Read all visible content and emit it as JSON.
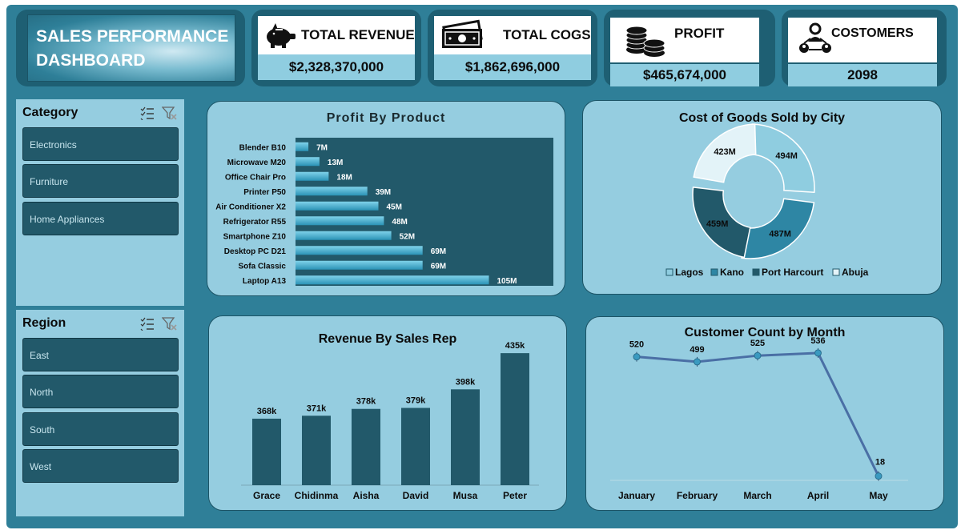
{
  "dashboard_title": "SALES PERFORMANCE DASHBOARD",
  "kpis": {
    "revenue": {
      "label": "TOTAL REVENUE",
      "value": "$2,328,370,000",
      "icon": "piggy-bank-icon"
    },
    "cogs": {
      "label": "TOTAL COGS",
      "value": "$1,862,696,000",
      "icon": "cash-icon"
    },
    "profit": {
      "label": "PROFIT",
      "value": "$465,674,000",
      "icon": "coins-icon"
    },
    "customers": {
      "label": "COSTOMERS",
      "value": "2098",
      "icon": "people-network-icon"
    }
  },
  "slicers": {
    "category": {
      "title": "Category",
      "items": [
        "Electronics",
        "Furniture",
        "Home Appliances"
      ]
    },
    "region": {
      "title": "Region",
      "items": [
        "East",
        "North",
        "South",
        "West"
      ]
    }
  },
  "colors": {
    "dark": "#22596a",
    "bar": "#3aa8c9",
    "panel": "#95cde0",
    "line": "#4a6fa5",
    "marker": "#3a9ac0"
  },
  "chart_data": [
    {
      "id": "profit_by_product",
      "type": "bar",
      "orientation": "horizontal",
      "title": "Profit By Product",
      "categories": [
        "Blender B10",
        "Microwave M20",
        "Office Chair Pro",
        "Printer P50",
        "Air Conditioner X2",
        "Refrigerator R55",
        "Smartphone Z10",
        "Desktop PC D21",
        "Sofa Classic",
        "Laptop A13"
      ],
      "values": [
        7,
        13,
        18,
        39,
        45,
        48,
        52,
        69,
        69,
        105
      ],
      "labels": [
        "7M",
        "13M",
        "18M",
        "39M",
        "45M",
        "48M",
        "52M",
        "69M",
        "69M",
        "105M"
      ],
      "xlim": [
        0,
        140
      ],
      "unit": "M"
    },
    {
      "id": "cogs_by_city",
      "type": "pie",
      "title": "Cost of Goods Sold by City",
      "categories": [
        "Lagos",
        "Kano",
        "Port Harcourt",
        "Abuja"
      ],
      "values": [
        494,
        487,
        459,
        423
      ],
      "labels": [
        "494M",
        "487M",
        "459M",
        "423M"
      ],
      "legend": "bottom"
    },
    {
      "id": "revenue_by_rep",
      "type": "bar",
      "title": "Revenue By Sales Rep",
      "categories": [
        "Grace",
        "Chidinma",
        "Aisha",
        "David",
        "Musa",
        "Peter"
      ],
      "values": [
        368,
        371,
        378,
        379,
        398,
        435
      ],
      "labels": [
        "368k",
        "371k",
        "378k",
        "379k",
        "398k",
        "435k"
      ],
      "ylim": [
        300,
        440
      ],
      "unit": "k"
    },
    {
      "id": "customers_by_month",
      "type": "line",
      "title": "Customer Count by Month",
      "categories": [
        "January",
        "February",
        "March",
        "April",
        "May"
      ],
      "values": [
        520,
        499,
        525,
        536,
        18
      ],
      "ylim": [
        0,
        620
      ]
    }
  ]
}
